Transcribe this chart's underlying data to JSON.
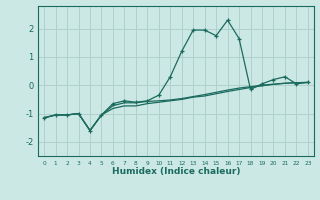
{
  "xlabel": "Humidex (Indice chaleur)",
  "background_color": "#cce8e4",
  "grid_color": "#b0d0cc",
  "line_color": "#1a6b5e",
  "x_values": [
    0,
    1,
    2,
    3,
    4,
    5,
    6,
    7,
    8,
    9,
    10,
    11,
    12,
    13,
    14,
    15,
    16,
    17,
    18,
    19,
    20,
    21,
    22,
    23
  ],
  "line1_y": [
    -1.15,
    -1.05,
    -1.05,
    -1.0,
    -1.6,
    -1.05,
    -0.65,
    -0.55,
    -0.6,
    -0.55,
    -0.35,
    0.3,
    1.2,
    1.95,
    1.95,
    1.75,
    2.3,
    1.65,
    -0.15,
    0.05,
    0.2,
    0.3,
    0.05,
    0.1
  ],
  "line2_y": [
    -1.15,
    -1.05,
    -1.05,
    -1.0,
    -1.6,
    -1.05,
    -0.82,
    -0.73,
    -0.73,
    -0.65,
    -0.6,
    -0.55,
    -0.5,
    -0.42,
    -0.38,
    -0.3,
    -0.22,
    -0.15,
    -0.08,
    -0.02,
    0.03,
    0.07,
    0.09,
    0.1
  ],
  "line3_y": [
    -1.15,
    -1.05,
    -1.05,
    -1.0,
    -1.6,
    -1.05,
    -0.72,
    -0.62,
    -0.62,
    -0.57,
    -0.55,
    -0.52,
    -0.47,
    -0.4,
    -0.33,
    -0.25,
    -0.17,
    -0.1,
    -0.05,
    0.0,
    0.04,
    0.07,
    0.09,
    0.1
  ],
  "xlim": [
    -0.5,
    23.5
  ],
  "ylim": [
    -2.5,
    2.8
  ],
  "yticks": [
    -2,
    -1,
    0,
    1,
    2
  ],
  "xticks": [
    0,
    1,
    2,
    3,
    4,
    5,
    6,
    7,
    8,
    9,
    10,
    11,
    12,
    13,
    14,
    15,
    16,
    17,
    18,
    19,
    20,
    21,
    22,
    23
  ]
}
